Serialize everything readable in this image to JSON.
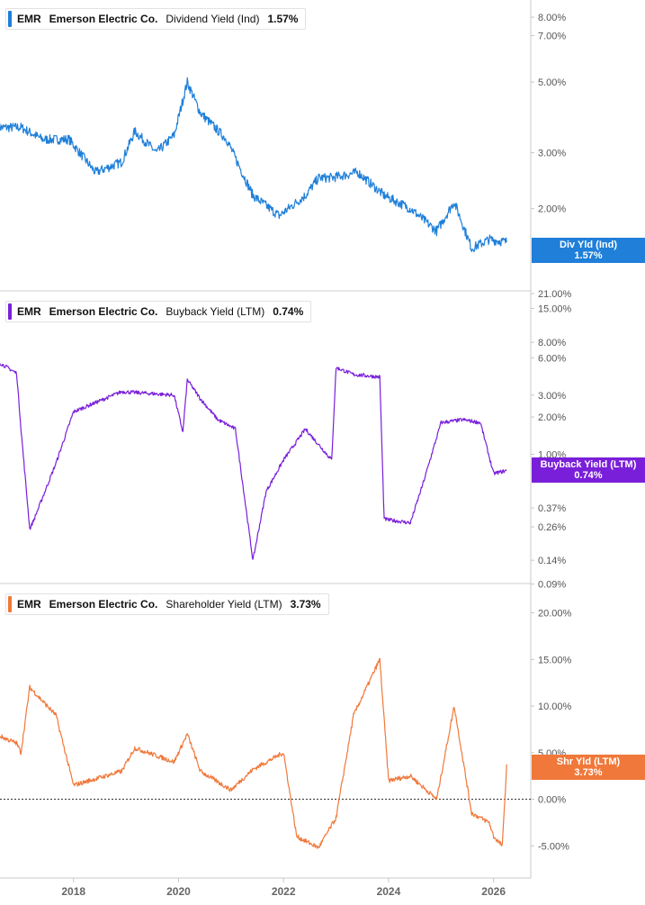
{
  "colors": {
    "dividend": "#1f7fd9",
    "buyback": "#7a1fd9",
    "shareholder": "#f0783a",
    "axis": "#c8c8c8",
    "divider": "#cfcfcf"
  },
  "legends": [
    {
      "ticker": "EMR",
      "company": "Emerson Electric Co.",
      "metric": "Dividend Yield (Ind)",
      "value": "1.57%"
    },
    {
      "ticker": "EMR",
      "company": "Emerson Electric Co.",
      "metric": "Buyback Yield (LTM)",
      "value": "0.74%"
    },
    {
      "ticker": "EMR",
      "company": "Emerson Electric Co.",
      "metric": "Shareholder Yield (LTM)",
      "value": "3.73%"
    }
  ],
  "tags": [
    {
      "label": "Div Yld (Ind)",
      "value": "1.57%"
    },
    {
      "label": "Buyback Yield (LTM)",
      "value": "0.74%"
    },
    {
      "label": "Shr Yld (LTM)",
      "value": "3.73%"
    }
  ],
  "x_axis": {
    "ticks": [
      "2018",
      "2020",
      "2022",
      "2024",
      "2026"
    ]
  },
  "chart_data": [
    {
      "type": "line",
      "title": "EMR Emerson Electric Co. Dividend Yield (Ind) 1.57%",
      "yscale": "log",
      "ylim": [
        1.2,
        8.6
      ],
      "yticks": [
        "8.00%",
        "7.00%",
        "5.00%",
        "3.00%",
        "2.00%"
      ],
      "ytick_values": [
        8,
        7,
        5,
        3,
        2
      ],
      "series": [
        {
          "name": "Dividend Yield (Ind)",
          "x": [
            "2016-08",
            "2017-01",
            "2017-06",
            "2017-12",
            "2018-06",
            "2018-12",
            "2019-03",
            "2019-08",
            "2019-12",
            "2020-03",
            "2020-06",
            "2020-12",
            "2021-06",
            "2021-12",
            "2022-06",
            "2022-09",
            "2022-12",
            "2023-06",
            "2023-12",
            "2024-06",
            "2024-12",
            "2025-04",
            "2025-08",
            "2025-12",
            "2026-04"
          ],
          "values": [
            3.6,
            3.6,
            3.3,
            3.3,
            2.6,
            2.8,
            3.5,
            3.0,
            3.4,
            5.0,
            4.0,
            3.3,
            2.2,
            1.9,
            2.2,
            2.5,
            2.5,
            2.6,
            2.2,
            2.0,
            1.7,
            2.1,
            1.5,
            1.6,
            1.57
          ]
        }
      ]
    },
    {
      "type": "line",
      "title": "EMR Emerson Electric Co. Buyback Yield (LTM) 0.74%",
      "yscale": "log",
      "ylim": [
        0.085,
        17
      ],
      "yticks": [
        "21.00%",
        "15.00%",
        "8.00%",
        "6.00%",
        "3.00%",
        "2.00%",
        "1.00%",
        "0.37%",
        "0.26%",
        "0.14%",
        "0.09%"
      ],
      "ytick_values": [
        21,
        15,
        8,
        6,
        3,
        2,
        1,
        0.37,
        0.26,
        0.14,
        0.09
      ],
      "series": [
        {
          "name": "Buyback Yield (LTM)",
          "x": [
            "2016-08",
            "2016-12",
            "2017-01",
            "2017-03",
            "2017-04",
            "2017-09",
            "2018-01",
            "2018-12",
            "2019-06",
            "2019-12",
            "2020-02",
            "2020-03",
            "2020-06",
            "2020-10",
            "2021-02",
            "2021-06",
            "2021-09",
            "2022-01",
            "2022-06",
            "2022-12",
            "2023-01",
            "2023-05",
            "2023-11",
            "2023-12",
            "2024-06",
            "2024-09",
            "2025-01",
            "2025-06",
            "2025-10",
            "2026-01",
            "2026-04"
          ],
          "values": [
            5.5,
            4.5,
            1.6,
            0.25,
            0.3,
            0.85,
            2.2,
            3.2,
            3.1,
            3.0,
            1.5,
            4.0,
            2.8,
            1.9,
            1.6,
            0.14,
            0.5,
            0.9,
            1.6,
            0.9,
            5.0,
            4.4,
            4.2,
            0.3,
            0.28,
            0.6,
            1.8,
            1.9,
            1.8,
            0.7,
            0.74
          ]
        }
      ]
    },
    {
      "type": "line",
      "title": "EMR Emerson Electric Co. Shareholder Yield (LTM) 3.73%",
      "ylim": [
        -7,
        21.5
      ],
      "yticks": [
        "20.00%",
        "15.00%",
        "10.00%",
        "5.00%",
        "0.00%",
        "-5.00%"
      ],
      "ytick_values": [
        20,
        15,
        10,
        5,
        0,
        -5
      ],
      "xticks": [
        "2018",
        "2020",
        "2022",
        "2024",
        "2026"
      ],
      "reference_line": 0,
      "series": [
        {
          "name": "Shareholder Yield (LTM)",
          "x": [
            "2016-08",
            "2016-12",
            "2017-01",
            "2017-03",
            "2017-09",
            "2018-01",
            "2018-12",
            "2019-03",
            "2019-12",
            "2020-03",
            "2020-06",
            "2021-01",
            "2021-06",
            "2022-01",
            "2022-04",
            "2022-09",
            "2023-01",
            "2023-05",
            "2023-11",
            "2024-01",
            "2024-06",
            "2024-12",
            "2025-04",
            "2025-08",
            "2025-12",
            "2026-01",
            "2026-03",
            "2026-04"
          ],
          "values": [
            6.8,
            6.0,
            5.0,
            12.0,
            9.0,
            1.5,
            3.0,
            5.5,
            4.0,
            7.0,
            3.0,
            1.0,
            3.2,
            5.0,
            -4.0,
            -5.2,
            -2.0,
            9.0,
            15.0,
            2.0,
            2.5,
            0.0,
            10.0,
            -1.5,
            -2.5,
            -4.0,
            -5.0,
            3.73
          ]
        }
      ]
    }
  ]
}
